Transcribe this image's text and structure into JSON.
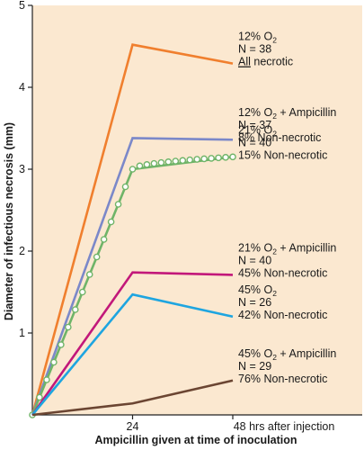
{
  "chart_data": {
    "type": "line",
    "background": "#fbe8d0",
    "xlabel": "Ampicillin given at time of inoculation",
    "ylabel": "Diameter of infectious necrosis (mm)",
    "x": [
      0,
      24,
      48
    ],
    "x_tick_labels": [
      "24",
      "48 hrs after injection"
    ],
    "y_ticks": [
      1,
      2,
      3,
      4,
      5
    ],
    "ylim": [
      0,
      5
    ],
    "grid": false,
    "series": [
      {
        "id": "s12",
        "color": "#f07f2e",
        "values": [
          0,
          4.52,
          4.29
        ],
        "marker": false
      },
      {
        "id": "s12amp",
        "color": "#7b88c9",
        "values": [
          0,
          3.38,
          3.36
        ],
        "marker": false
      },
      {
        "id": "s21",
        "color": "#6fb468",
        "values": [
          0,
          3.0,
          3.15
        ],
        "marker": true
      },
      {
        "id": "s21amp",
        "color": "#c2187a",
        "values": [
          0,
          1.74,
          1.71
        ],
        "marker": false
      },
      {
        "id": "s45",
        "color": "#1ea5e0",
        "values": [
          0,
          1.47,
          1.2
        ],
        "marker": false
      },
      {
        "id": "s45amp",
        "color": "#6b4532",
        "values": [
          0,
          0.14,
          0.42
        ],
        "marker": false
      }
    ],
    "annotations": [
      {
        "series": "s12",
        "lines": [
          [
            "12% O",
            "2",
            ""
          ],
          [
            "N = 38"
          ],
          [
            "All",
            "",
            " necrotic"
          ]
        ],
        "underline_first": [
          false,
          false,
          true
        ]
      },
      {
        "series": "s12amp",
        "lines": [
          [
            "12% O",
            "2",
            " + Ampicillin"
          ],
          [
            "N = 37"
          ],
          [
            "8% Non-necrotic"
          ]
        ]
      },
      {
        "series": "s21",
        "lines": [
          [
            "21% O",
            "2",
            ""
          ],
          [
            "N = 40"
          ],
          [
            "15% Non-necrotic"
          ]
        ]
      },
      {
        "series": "s21amp",
        "lines": [
          [
            "21% O",
            "2",
            " + Ampicillin"
          ],
          [
            "N = 40"
          ],
          [
            "45% Non-necrotic"
          ]
        ]
      },
      {
        "series": "s45",
        "lines": [
          [
            "45% O",
            "2",
            ""
          ],
          [
            "N = 26"
          ],
          [
            "42% Non-necrotic"
          ]
        ]
      },
      {
        "series": "s45amp",
        "lines": [
          [
            "45% O",
            "2",
            " + Ampicillin"
          ],
          [
            "N = 29"
          ],
          [
            "76% Non-necrotic"
          ]
        ]
      }
    ]
  }
}
